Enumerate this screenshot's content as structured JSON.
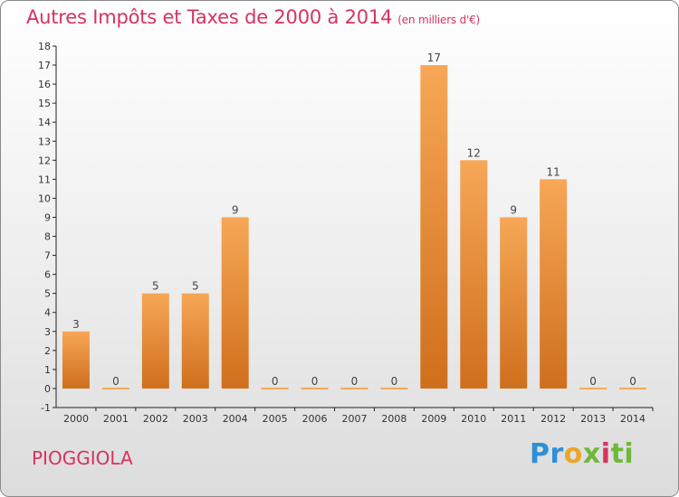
{
  "header": {
    "title": "Autres Impôts et Taxes de 2000 à 2014",
    "unit": "(en milliers d'€)"
  },
  "footer": {
    "place": "PIOGGIOLA",
    "brand": [
      "Pr",
      "o",
      "x",
      "i",
      "ti"
    ]
  },
  "colors": {
    "bar_top": "#f7a757",
    "bar_bottom": "#cf6f1c",
    "title": "#d6335f"
  },
  "chart_data": {
    "type": "bar",
    "categories": [
      "2000",
      "2001",
      "2002",
      "2003",
      "2004",
      "2005",
      "2006",
      "2007",
      "2008",
      "2009",
      "2010",
      "2011",
      "2012",
      "2013",
      "2014"
    ],
    "values": [
      3,
      0,
      5,
      5,
      9,
      0,
      0,
      0,
      0,
      17,
      12,
      9,
      11,
      0,
      0
    ],
    "data_labels": [
      "3",
      "0",
      "5",
      "5",
      "9",
      "0",
      "0",
      "0",
      "0",
      "17",
      "12",
      "9",
      "11",
      "0",
      "0"
    ],
    "title": "Autres Impôts et Taxes de 2000 à 2014",
    "subtitle": "(en milliers d'€)",
    "xlabel": "",
    "ylabel": "",
    "ylim": [
      -1,
      18
    ],
    "yticks": [
      "-1",
      "0",
      "1",
      "2",
      "3",
      "4",
      "5",
      "6",
      "7",
      "8",
      "9",
      "10",
      "11",
      "12",
      "13",
      "14",
      "15",
      "16",
      "17",
      "18"
    ],
    "grid": false,
    "legend": "none"
  }
}
